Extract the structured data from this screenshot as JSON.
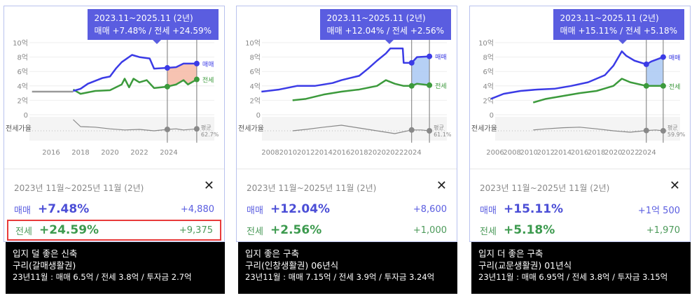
{
  "panels": [
    {
      "tooltip": {
        "range": "2023.11~2025.11 (2년)",
        "text": "매매 +7.48%  /  전세 +24.59%"
      },
      "summary": {
        "range": "2023년 11월~2025년 11월 (2년)",
        "sale_label": "매매",
        "sale_pct": "+7.48%",
        "sale_amt": "+4,880",
        "rent_label": "전세",
        "rent_pct": "+24.59%",
        "rent_amt": "+9,375",
        "rent_highlighted": true
      },
      "note": {
        "line1": "입지 덜 좋은 신축",
        "line2": "구리(갈매생활권)",
        "line3": "23년11월 : 매매 6.5억 / 전세 3.8억 / 투자금 2.7억"
      },
      "fill_color": "#f6b9a5"
    },
    {
      "tooltip": {
        "range": "2023.11~2025.11 (2년)",
        "text": "매매 +12.04%  /  전세 +2.56%"
      },
      "summary": {
        "range": "2023년 11월~2025년 11월 (2년)",
        "sale_label": "매매",
        "sale_pct": "+12.04%",
        "sale_amt": "+8,600",
        "rent_label": "전세",
        "rent_pct": "+2.56%",
        "rent_amt": "+1,000",
        "rent_highlighted": false
      },
      "note": {
        "line1": "입지 좋은 구축",
        "line2": "구리(인창생활권) 06년식",
        "line3": "23년11월 : 매매 7.15억 / 전세 3.9억 / 투자금 3.24억"
      },
      "fill_color": "#a9c8f3"
    },
    {
      "tooltip": {
        "range": "2023.11~2025.11 (2년)",
        "text": "매매 +15.11%  /  전세 +5.18%"
      },
      "summary": {
        "range": "2023년 11월~2025년 11월 (2년)",
        "sale_label": "매매",
        "sale_pct": "+15.11%",
        "sale_amt": "+1억 500",
        "rent_label": "전세",
        "rent_pct": "+5.18%",
        "rent_amt": "+1,970",
        "rent_highlighted": false
      },
      "note": {
        "line1": "입지 더 좋은 구축",
        "line2": "구리(교문생활권) 01년식",
        "line3": "23년11월 : 매매 6.95억 / 전세 3.8억 / 투자금 3.15억"
      },
      "fill_color": "#a9c8f3"
    }
  ],
  "close_icon": "close-x-icon",
  "colors": {
    "sale": "#3b3be6",
    "rent": "#3c9a3c",
    "ratio": "#888888",
    "tooltip": "#5a5de0",
    "highlight": "#e83a3a"
  },
  "chart_data": [
    {
      "type": "line",
      "yticks": [
        "10억",
        "8억",
        "6억",
        "4억",
        "2억",
        "0"
      ],
      "ylim": [
        0,
        10
      ],
      "xticks": [
        "2016",
        "2018",
        "2020",
        "2022",
        "2024"
      ],
      "ratio_label": "전세가율",
      "avg_label": "평균",
      "avg_value": "62.7%",
      "range": [
        2023.9,
        2025.9
      ],
      "series": [
        {
          "name": "매매",
          "values": [
            [
              2017.5,
              3.3
            ],
            [
              2018,
              3.6
            ],
            [
              2018.5,
              4.3
            ],
            [
              2019,
              4.7
            ],
            [
              2019.5,
              5.1
            ],
            [
              2020,
              5.3
            ],
            [
              2020.4,
              6.4
            ],
            [
              2020.8,
              7.3
            ],
            [
              2021.5,
              8.3
            ],
            [
              2022,
              8.0
            ],
            [
              2022.7,
              7.8
            ],
            [
              2023,
              6.4
            ],
            [
              2023.9,
              6.5
            ],
            [
              2024.5,
              6.6
            ],
            [
              2025,
              7.1
            ],
            [
              2025.9,
              7.1
            ]
          ]
        },
        {
          "name": "전세",
          "values": [
            [
              2017.5,
              3.5
            ],
            [
              2018,
              2.9
            ],
            [
              2019,
              3.3
            ],
            [
              2020,
              3.4
            ],
            [
              2020.8,
              4.2
            ],
            [
              2021,
              5.0
            ],
            [
              2021.3,
              3.8
            ],
            [
              2021.6,
              5.0
            ],
            [
              2022,
              4.5
            ],
            [
              2022.5,
              4.8
            ],
            [
              2023,
              3.7
            ],
            [
              2023.9,
              3.9
            ],
            [
              2024.5,
              4.2
            ],
            [
              2025,
              4.8
            ],
            [
              2025.3,
              4.2
            ],
            [
              2025.9,
              4.9
            ]
          ]
        },
        {
          "name": "",
          "values": [
            [
              2014.7,
              3.2
            ],
            [
              2017.5,
              3.2
            ]
          ]
        }
      ],
      "ratio": [
        [
          2017.5,
          95
        ],
        [
          2018,
          70
        ],
        [
          2019,
          68
        ],
        [
          2020,
          62
        ],
        [
          2021,
          58
        ],
        [
          2022,
          60
        ],
        [
          2023,
          55
        ],
        [
          2023.9,
          60
        ],
        [
          2024.5,
          62
        ],
        [
          2025,
          58
        ],
        [
          2025.9,
          62
        ]
      ]
    },
    {
      "type": "line",
      "yticks": [
        "10억",
        "8억",
        "6억",
        "4억",
        "2억",
        "0"
      ],
      "ylim": [
        0,
        10
      ],
      "xticks": [
        "2008",
        "2010",
        "2012",
        "2014",
        "2016",
        "2018",
        "2020",
        "2022",
        "2024"
      ],
      "ratio_label": "전세가율",
      "avg_label": "평균",
      "avg_value": "61.1%",
      "range": [
        2023.9,
        2025.9
      ],
      "series": [
        {
          "name": "매매",
          "values": [
            [
              2007,
              3.2
            ],
            [
              2009,
              3.5
            ],
            [
              2011,
              4.0
            ],
            [
              2013,
              4.0
            ],
            [
              2015,
              4.4
            ],
            [
              2016,
              4.8
            ],
            [
              2017,
              5.1
            ],
            [
              2018,
              5.4
            ],
            [
              2019,
              6.4
            ],
            [
              2020,
              7.5
            ],
            [
              2021,
              8.5
            ],
            [
              2021.5,
              9.2
            ],
            [
              2022.9,
              9.2
            ],
            [
              2023,
              7.2
            ],
            [
              2023.9,
              7.2
            ],
            [
              2024.5,
              8.0
            ],
            [
              2025.9,
              8.1
            ]
          ]
        },
        {
          "name": "전세",
          "values": [
            [
              2010.5,
              2.0
            ],
            [
              2012,
              2.2
            ],
            [
              2014,
              2.8
            ],
            [
              2016,
              3.2
            ],
            [
              2018,
              3.5
            ],
            [
              2020,
              4.0
            ],
            [
              2021,
              4.8
            ],
            [
              2022,
              4.3
            ],
            [
              2023,
              4.0
            ],
            [
              2023.9,
              4.0
            ],
            [
              2024.5,
              4.3
            ],
            [
              2025.9,
              4.1
            ]
          ]
        }
      ],
      "ratio": [
        [
          2010.5,
          55
        ],
        [
          2012,
          60
        ],
        [
          2014,
          68
        ],
        [
          2016,
          75
        ],
        [
          2018,
          65
        ],
        [
          2020,
          55
        ],
        [
          2022,
          45
        ],
        [
          2023.9,
          58
        ],
        [
          2025,
          58
        ],
        [
          2025.9,
          55
        ]
      ]
    },
    {
      "type": "line",
      "yticks": [
        "10억",
        "8억",
        "6억",
        "4억",
        "2억",
        "0"
      ],
      "ylim": [
        0,
        10
      ],
      "xticks": [
        "2006",
        "2008",
        "2010",
        "2012",
        "2014",
        "2016",
        "2018",
        "2020",
        "2022",
        "2024"
      ],
      "ratio_label": "전세가율",
      "avg_label": "평균",
      "avg_value": "59.9%",
      "range": [
        2023.9,
        2025.9
      ],
      "series": [
        {
          "name": "매매",
          "values": [
            [
              2005.5,
              2.2
            ],
            [
              2007,
              2.9
            ],
            [
              2009,
              3.3
            ],
            [
              2011,
              3.5
            ],
            [
              2013,
              3.6
            ],
            [
              2015,
              4.0
            ],
            [
              2017,
              4.5
            ],
            [
              2019,
              5.5
            ],
            [
              2020,
              6.8
            ],
            [
              2021,
              8.8
            ],
            [
              2021.5,
              8.2
            ],
            [
              2022.5,
              7.5
            ],
            [
              2023.9,
              7.0
            ],
            [
              2024.5,
              7.4
            ],
            [
              2025.9,
              8.0
            ]
          ]
        },
        {
          "name": "전세",
          "values": [
            [
              2010.5,
              1.7
            ],
            [
              2012,
              2.2
            ],
            [
              2014,
              2.6
            ],
            [
              2016,
              3.0
            ],
            [
              2018,
              3.3
            ],
            [
              2020,
              4.0
            ],
            [
              2021,
              5.0
            ],
            [
              2022,
              4.5
            ],
            [
              2023.9,
              4.0
            ],
            [
              2025.9,
              4.0
            ]
          ]
        }
      ],
      "ratio": [
        [
          2010.5,
          58
        ],
        [
          2012,
          62
        ],
        [
          2014,
          66
        ],
        [
          2016,
          68
        ],
        [
          2018,
          62
        ],
        [
          2020,
          55
        ],
        [
          2022,
          50
        ],
        [
          2023.9,
          56
        ],
        [
          2025,
          58
        ],
        [
          2025.9,
          55
        ]
      ]
    }
  ]
}
